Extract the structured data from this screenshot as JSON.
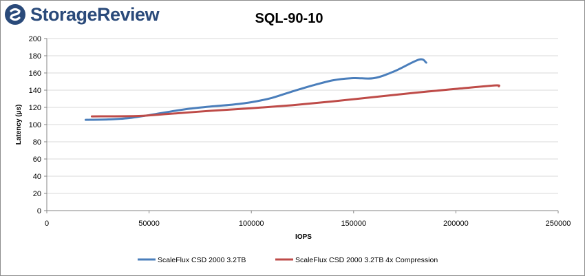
{
  "brand": {
    "name": "StorageReview"
  },
  "chart_data": {
    "type": "line",
    "title": "SQL-90-10",
    "xlabel": "IOPS",
    "ylabel": "Latency (µs)",
    "xlim": [
      0,
      250000
    ],
    "ylim": [
      0,
      200
    ],
    "x_ticks": [
      0,
      50000,
      100000,
      150000,
      200000,
      250000
    ],
    "y_ticks": [
      0,
      20,
      40,
      60,
      80,
      100,
      120,
      140,
      160,
      180,
      200
    ],
    "grid": true,
    "legend": "bottom",
    "series": [
      {
        "name": "ScaleFlux CSD 2000 3.2TB",
        "color": "#4a7ebb",
        "points": [
          [
            19000,
            105.5
          ],
          [
            30000,
            106
          ],
          [
            40000,
            107.5
          ],
          [
            50000,
            111
          ],
          [
            60000,
            115
          ],
          [
            70000,
            118.5
          ],
          [
            80000,
            121
          ],
          [
            90000,
            123
          ],
          [
            100000,
            126
          ],
          [
            110000,
            131
          ],
          [
            120000,
            138.5
          ],
          [
            130000,
            145.5
          ],
          [
            140000,
            151.5
          ],
          [
            150000,
            154
          ],
          [
            160000,
            154
          ],
          [
            170000,
            162
          ],
          [
            182000,
            175.5
          ],
          [
            185500,
            172
          ]
        ]
      },
      {
        "name": "ScaleFlux CSD 2000 3.2TB 4x Compression",
        "color": "#be4b48",
        "points": [
          [
            22000,
            109.5
          ],
          [
            45000,
            110
          ],
          [
            60000,
            112.5
          ],
          [
            80000,
            116
          ],
          [
            100000,
            119
          ],
          [
            120000,
            122.5
          ],
          [
            140000,
            127
          ],
          [
            160000,
            132
          ],
          [
            180000,
            137
          ],
          [
            200000,
            141.5
          ],
          [
            219000,
            145.5
          ],
          [
            221000,
            144.5
          ]
        ]
      }
    ]
  }
}
